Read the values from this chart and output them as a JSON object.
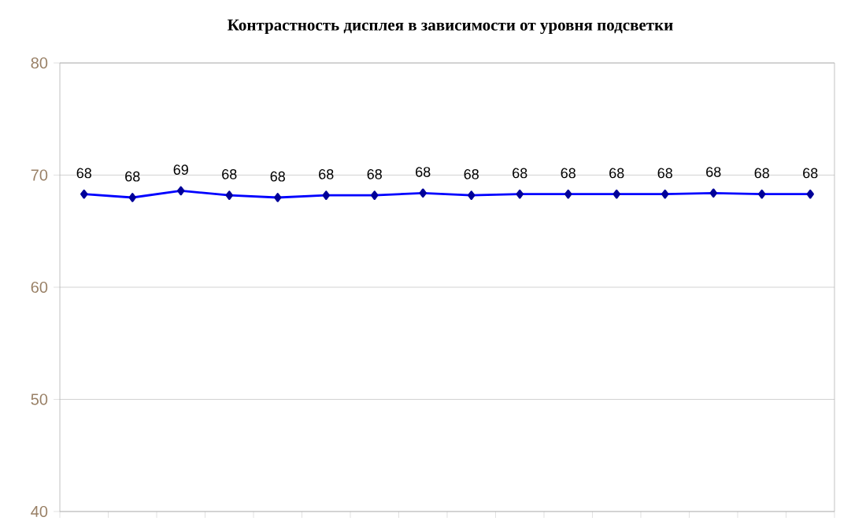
{
  "chart_data": {
    "type": "line",
    "title": "Контрастность дисплея в зависимости от уровня подсветки",
    "categories": [
      null,
      null,
      null,
      null,
      null,
      null,
      null,
      null,
      null,
      null,
      null,
      null,
      null,
      null,
      null,
      null
    ],
    "series": [
      {
        "color": "#0000ff",
        "values": [
          68.3,
          68.0,
          68.6,
          68.2,
          68.0,
          68.2,
          68.2,
          68.4,
          68.2,
          68.3,
          68.3,
          68.3,
          68.3,
          68.4,
          68.3,
          68.3
        ],
        "value_labels": [
          "68",
          "68",
          "69",
          "68",
          "68",
          "68",
          "68",
          "68",
          "68",
          "68",
          "68",
          "68",
          "68",
          "68",
          "68",
          "68"
        ]
      }
    ],
    "ylim": [
      40,
      80
    ],
    "yticks": [
      40,
      50,
      60,
      70,
      80
    ],
    "grid": "y",
    "marker": "diamond",
    "line_style": "solid"
  }
}
